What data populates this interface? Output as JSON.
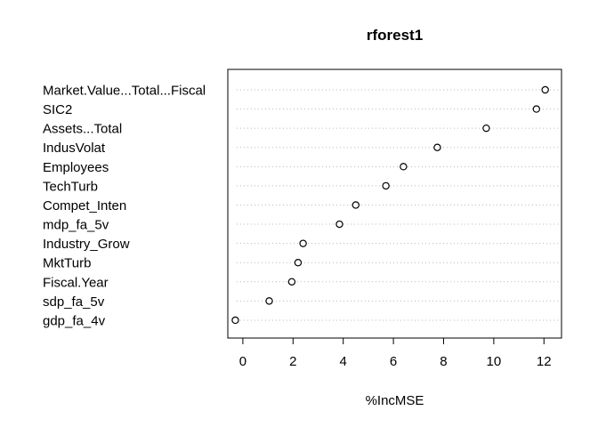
{
  "chart_data": {
    "type": "scatter",
    "title": "rforest1",
    "xlabel": "%IncMSE",
    "ylabel": "",
    "xlim": [
      -0.6,
      12.7
    ],
    "xticks": [
      "0",
      "2",
      "4",
      "6",
      "8",
      "10",
      "12"
    ],
    "xtick_values": [
      0,
      2,
      4,
      6,
      8,
      10,
      12
    ],
    "grid": "dotted horizontal lines per variable",
    "categories": [
      "Market.Value...Total...Fiscal",
      "SIC2",
      "Assets...Total",
      "IndusVolat",
      "Employees",
      "TechTurb",
      "Compet_Inten",
      "mdp_fa_5v",
      "Industry_Grow",
      "MktTurb",
      "Fiscal.Year",
      "sdp_fa_5v",
      "gdp_fa_4v"
    ],
    "values": [
      12.05,
      11.7,
      9.7,
      7.75,
      6.4,
      5.7,
      4.5,
      3.85,
      2.4,
      2.2,
      1.95,
      1.05,
      -0.3
    ]
  }
}
